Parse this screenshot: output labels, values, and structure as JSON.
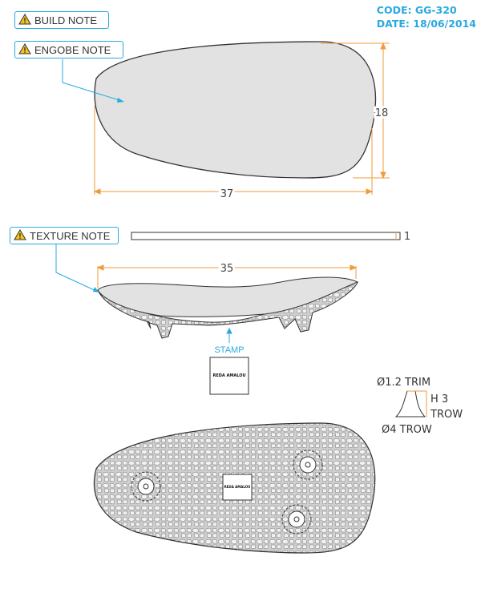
{
  "header": {
    "code": "CODE: GG-320",
    "date": "DATE: 18/06/2014"
  },
  "notes": {
    "build": "BUILD NOTE",
    "engobe": "ENGOBE NOTE",
    "texture": "TEXTURE NOTE"
  },
  "dimensions": {
    "top_width": "37",
    "top_height": "18",
    "profile_thickness": "1",
    "side_width": "35"
  },
  "stamp": {
    "label": "STAMP",
    "text": "REDA AMALOU"
  },
  "foot": {
    "trim": "Ø1.2 TRIM",
    "height": "H 3",
    "height_method": "TROW",
    "base": "Ø4 TROW"
  },
  "colors": {
    "accent": "#29a9e0",
    "dimension": "#f39a3c",
    "plate_fill": "#e2e2e2",
    "outline": "#333333"
  }
}
